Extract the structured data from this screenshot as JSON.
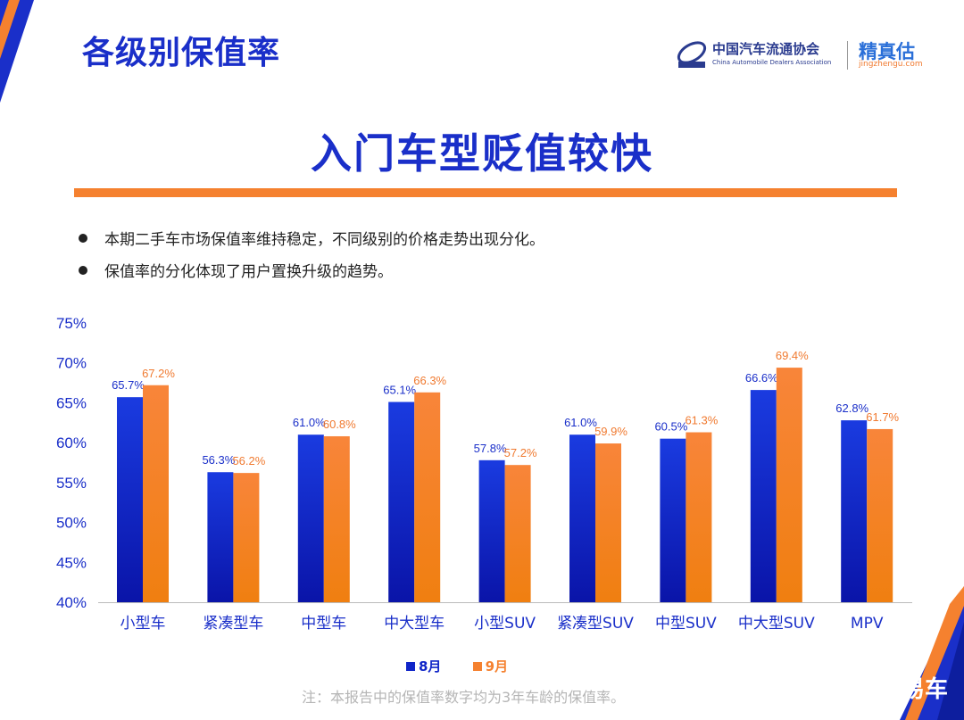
{
  "slide": {
    "title": "各级别保值率",
    "headline": "入门车型贬值较快",
    "bullets": [
      "本期二手车市场保值率维持稳定，不同级别的价格走势出现分化。",
      "保值率的分化体现了用户置换升级的趋势。"
    ],
    "note": "注：本报告中的保值率数字均为3年车龄的保值率。",
    "logos": {
      "cada_cn": "中国汽车流通协会",
      "cada_en": "China Automobile Dealers Association",
      "cada_mark": "CADA",
      "jzg_cn": "精真估",
      "jzg_en": "jingzhengu.com",
      "yiche": "易车"
    },
    "colors": {
      "primary": "#1a2fc9",
      "accent": "#f5812f"
    }
  },
  "chart_data": {
    "type": "bar",
    "title": "",
    "xlabel": "",
    "ylabel": "",
    "categories": [
      "小型车",
      "紧凑型车",
      "中型车",
      "中大型车",
      "小型SUV",
      "紧凑型SUV",
      "中型SUV",
      "中大型SUV",
      "MPV"
    ],
    "series": [
      {
        "name": "8月",
        "color": "#1025c8",
        "values": [
          65.7,
          56.3,
          61.0,
          65.1,
          57.8,
          61.0,
          60.5,
          66.6,
          62.8
        ]
      },
      {
        "name": "9月",
        "color": "#f5812f",
        "values": [
          67.2,
          56.2,
          60.8,
          66.3,
          57.2,
          59.9,
          61.3,
          69.4,
          61.7
        ]
      }
    ],
    "ylim": [
      40,
      75
    ],
    "yticks": [
      "40%",
      "45%",
      "50%",
      "55%",
      "60%",
      "65%",
      "70%",
      "75%"
    ],
    "grid": false,
    "legend": "bottom",
    "data_labels": true
  }
}
